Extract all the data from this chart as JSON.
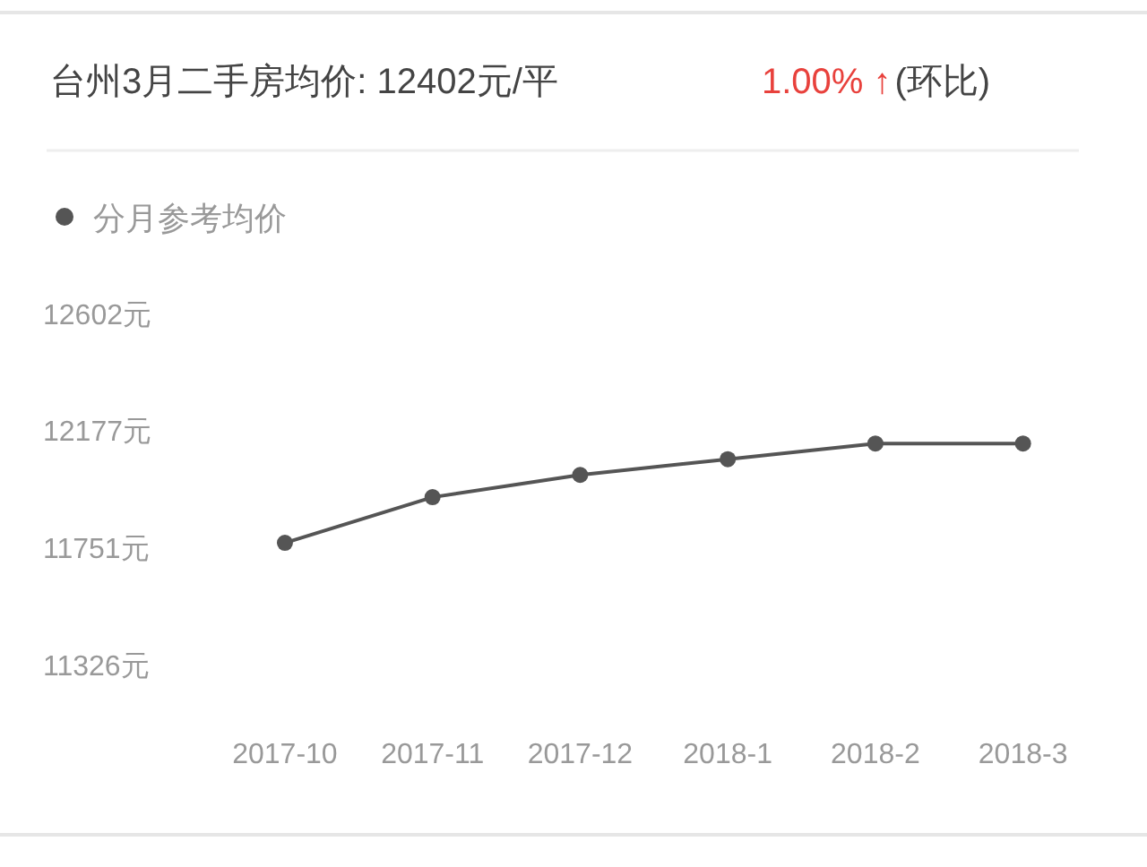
{
  "chart_data": {
    "type": "line",
    "title": "台州3月二手房均价: 12402元/平",
    "subtitle": "1.00% ↑",
    "annotations": [
      "(环比)"
    ],
    "categories": [
      "2017-10",
      "2017-11",
      "2017-12",
      "2018-1",
      "2018-2",
      "2018-3"
    ],
    "series": [
      {
        "name": "分月参考均价",
        "color": "#555555",
        "values": [
          11767,
          11933,
          12014,
          12071,
          12128,
          12128
        ]
      }
    ],
    "ylim": [
      11326,
      12602
    ],
    "yticks": [
      {
        "value": 11326,
        "label": "11326元"
      },
      {
        "value": 11751,
        "label": "11751元"
      },
      {
        "value": 12177,
        "label": "12177元"
      },
      {
        "value": 12602,
        "label": "12602元"
      }
    ],
    "grid": false,
    "legend": "top left",
    "marker": "circle",
    "line_style": "solid"
  }
}
